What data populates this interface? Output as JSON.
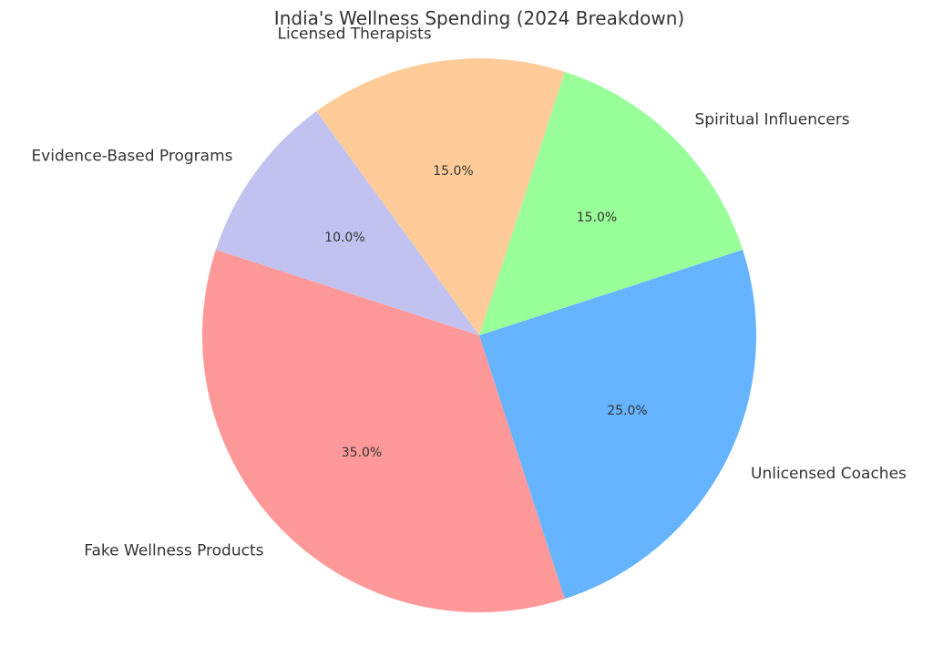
{
  "chart_data": {
    "type": "pie",
    "title": "India's Wellness Spending (2024 Breakdown)",
    "start_angle_deg": 162,
    "direction": "counterclockwise",
    "slices": [
      {
        "label": "Fake Wellness Products",
        "value": 35.0,
        "pct_label": "35.0%",
        "color": "#ff9999"
      },
      {
        "label": "Unlicensed Coaches",
        "value": 25.0,
        "pct_label": "25.0%",
        "color": "#66b3ff"
      },
      {
        "label": "Spiritual Influencers",
        "value": 15.0,
        "pct_label": "15.0%",
        "color": "#99ff99"
      },
      {
        "label": "Licensed Therapists",
        "value": 15.0,
        "pct_label": "15.0%",
        "color": "#ffcc99"
      },
      {
        "label": "Evidence-Based Programs",
        "value": 10.0,
        "pct_label": "10.0%",
        "color": "#c2c2f0"
      }
    ]
  }
}
